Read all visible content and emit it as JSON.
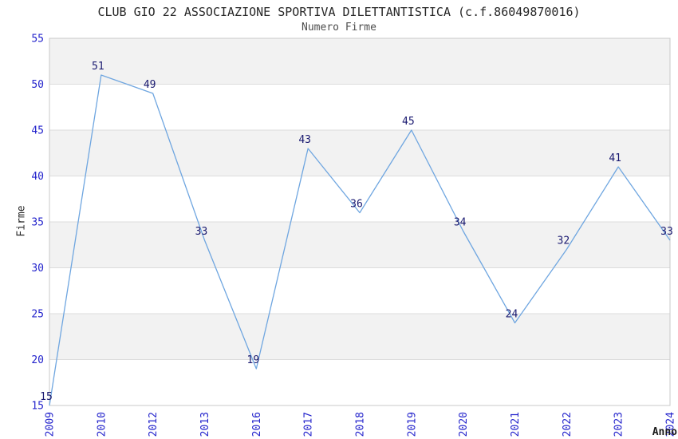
{
  "title": "CLUB GIO 22 ASSOCIAZIONE SPORTIVA DILETTANTISTICA (c.f.86049870016)",
  "subtitle": "Numero Firme",
  "chart_data": {
    "type": "line",
    "title": "CLUB GIO 22 ASSOCIAZIONE SPORTIVA DILETTANTISTICA (c.f.86049870016)",
    "subtitle": "Numero Firme",
    "xlabel": "Anno",
    "ylabel": "Firme",
    "categories": [
      "2009",
      "2010",
      "2012",
      "2013",
      "2016",
      "2017",
      "2018",
      "2019",
      "2020",
      "2021",
      "2022",
      "2023",
      "2024"
    ],
    "values": [
      15,
      51,
      49,
      33,
      19,
      43,
      36,
      45,
      34,
      24,
      32,
      41,
      33
    ],
    "ylim": [
      15,
      55
    ],
    "yticks": [
      15,
      20,
      25,
      30,
      35,
      40,
      45,
      50,
      55
    ],
    "grid": true,
    "legend": false,
    "point_labels_shown": true,
    "colors": {
      "line": "#6FA6E0",
      "point_label": "#191970",
      "tick_label": "#2424CC",
      "band": "#F2F2F2",
      "band_alt": "#FFFFFF",
      "gridline": "#DCDCDC",
      "border": "#C8C8C8",
      "title_text": "#262626",
      "subtitle_text": "#4D4D4D",
      "background": "#FFFFFF"
    }
  }
}
